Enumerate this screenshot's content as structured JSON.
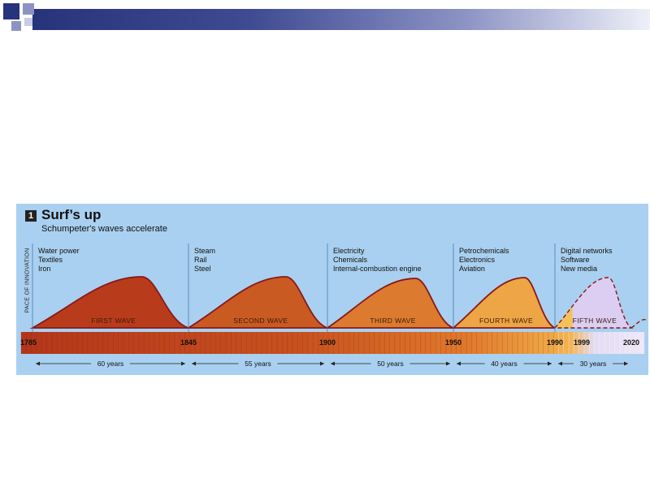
{
  "slide": {
    "accent": "#27337a"
  },
  "figure": {
    "number": "1",
    "title": "Surf’s up",
    "subtitle": "Schumpeter's waves accelerate"
  },
  "chart_data": {
    "type": "area",
    "title": "Surf’s up",
    "subtitle": "Schumpeter's waves accelerate",
    "ylabel": "PACE OF INNOVATION",
    "xlabel": "",
    "x_ticks": [
      1785,
      1845,
      1900,
      1950,
      1990,
      1999,
      2020
    ],
    "tick_labels": [
      "1785",
      "1845",
      "1900",
      "1950",
      "1990",
      "1999",
      "2020"
    ],
    "waves": [
      {
        "label": "FIRST WAVE",
        "start": 1785,
        "end": 1845,
        "duration_label": "60 years",
        "industries": [
          "Water power",
          "Textiles",
          "Iron"
        ],
        "color": "#b83c1c"
      },
      {
        "label": "SECOND WAVE",
        "start": 1845,
        "end": 1900,
        "duration_label": "55 years",
        "industries": [
          "Steam",
          "Rail",
          "Steel"
        ],
        "color": "#c95a22"
      },
      {
        "label": "THIRD WAVE",
        "start": 1900,
        "end": 1950,
        "duration_label": "50 years",
        "industries": [
          "Electricity",
          "Chemicals",
          "Internal-combustion engine"
        ],
        "color": "#dc7a30"
      },
      {
        "label": "FOURTH WAVE",
        "start": 1950,
        "end": 1990,
        "duration_label": "40 years",
        "industries": [
          "Petrochemicals",
          "Electronics",
          "Aviation"
        ],
        "color": "#eda545"
      },
      {
        "label": "FIFTH WAVE",
        "start": 1990,
        "end": 2020,
        "duration_label": "30 years",
        "industries": [
          "Digital networks",
          "Software",
          "New media"
        ],
        "color": "#d8c8f2"
      }
    ],
    "grid": false,
    "legend": "none"
  }
}
